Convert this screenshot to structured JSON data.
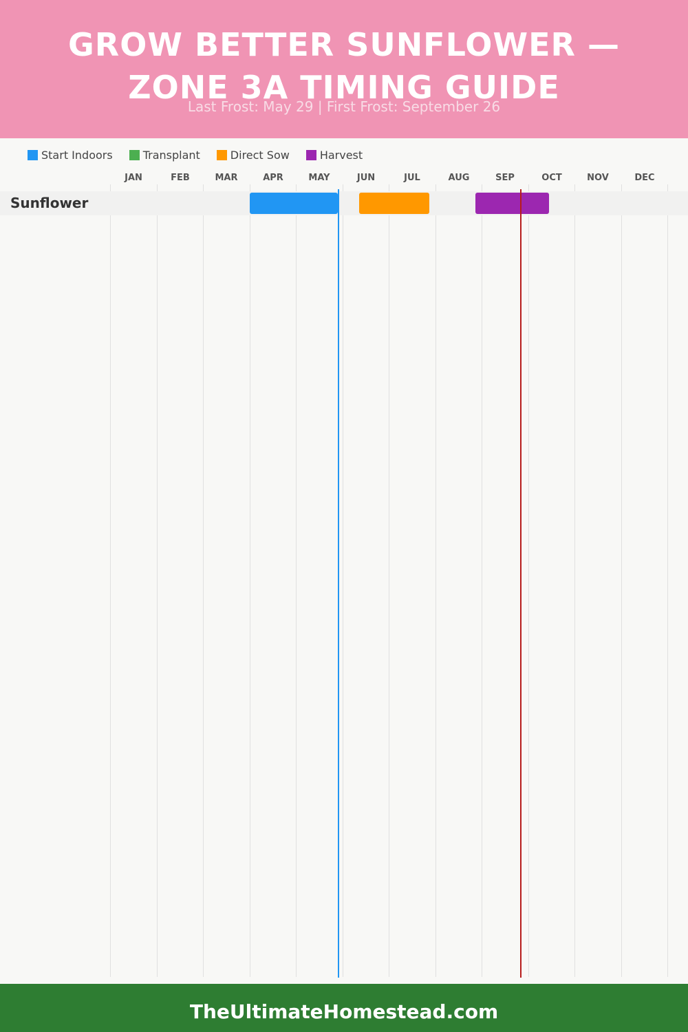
{
  "header": {
    "title_line1": "GROW BETTER SUNFLOWER —",
    "title_line2": "ZONE 3A TIMING GUIDE",
    "subtitle": "Last Frost: May 29 | First Frost: September 26"
  },
  "colors": {
    "header_bg": "#f094b4",
    "footer_bg": "#2e7d32",
    "start_indoors": "#2196f3",
    "transplant": "#4caf50",
    "direct_sow": "#ff9800",
    "harvest": "#9c27b0",
    "last_frost_line": "#2196f3",
    "first_frost_line": "#b71c1c"
  },
  "legend": [
    {
      "label": "Start Indoors",
      "color": "#2196f3"
    },
    {
      "label": "Transplant",
      "color": "#4caf50"
    },
    {
      "label": "Direct Sow",
      "color": "#ff9800"
    },
    {
      "label": "Harvest",
      "color": "#9c27b0"
    }
  ],
  "chart_data": {
    "type": "gantt",
    "x_unit": "month",
    "categories": [
      "JAN",
      "FEB",
      "MAR",
      "APR",
      "MAY",
      "JUN",
      "JUL",
      "AUG",
      "SEP",
      "OCT",
      "NOV",
      "DEC"
    ],
    "rows": [
      {
        "name": "Sunflower",
        "bars": [
          {
            "type": "Start Indoors",
            "start": "Apr 1",
            "end": "May 29",
            "color": "#2196f3"
          },
          {
            "type": "Direct Sow",
            "start": "Jun 12",
            "end": "Jul 28",
            "color": "#ff9800"
          },
          {
            "type": "Harvest",
            "start": "Aug 28",
            "end": "Oct 15",
            "color": "#9c27b0"
          }
        ]
      }
    ],
    "markers": [
      {
        "name": "Last Frost",
        "date": "May 29",
        "color": "#2196f3"
      },
      {
        "name": "First Frost",
        "date": "September 26",
        "color": "#b71c1c"
      }
    ]
  },
  "footer": {
    "text": "TheUltimateHomestead.com"
  }
}
